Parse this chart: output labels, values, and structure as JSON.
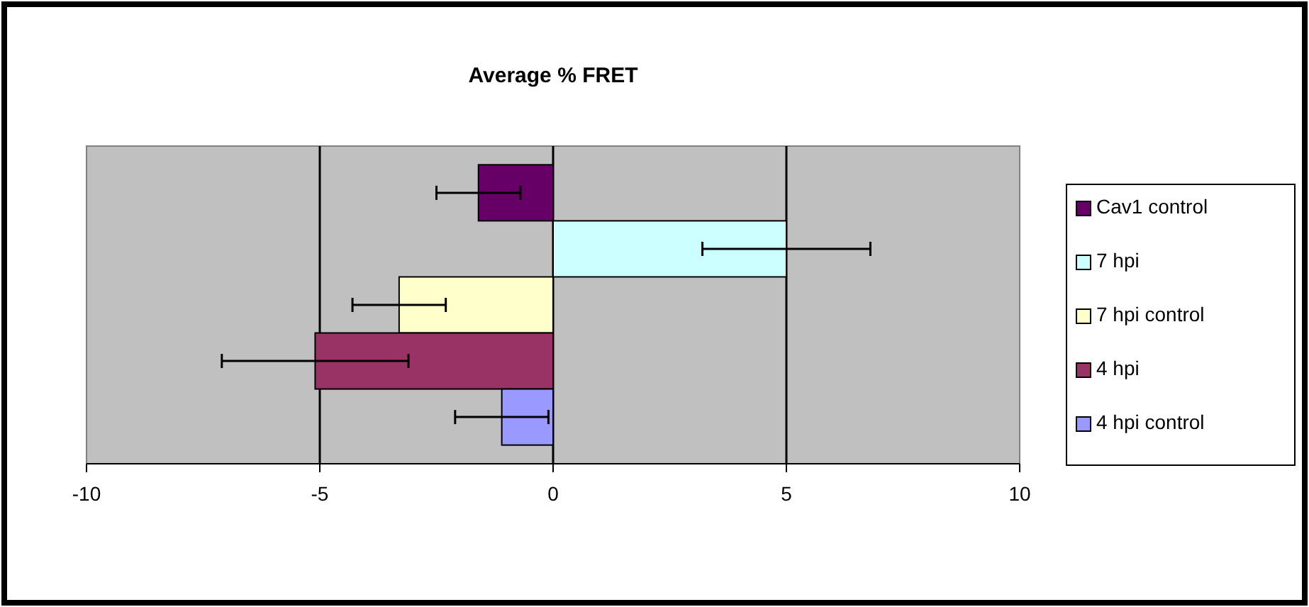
{
  "chart_data": {
    "type": "bar",
    "orientation": "horizontal",
    "title": "Average % FRET",
    "categories": [
      null
    ],
    "series": [
      {
        "name": "Cav1 control",
        "color": "#660066",
        "values": [
          -1.6
        ],
        "errors": [
          0.9
        ]
      },
      {
        "name": "7 hpi",
        "color": "#ccffff",
        "values": [
          5.0
        ],
        "errors": [
          1.8
        ]
      },
      {
        "name": "7 hpi control",
        "color": "#ffffcc",
        "values": [
          -3.3
        ],
        "errors": [
          1.0
        ]
      },
      {
        "name": "4 hpi",
        "color": "#993366",
        "values": [
          -5.1
        ],
        "errors": [
          2.0
        ]
      },
      {
        "name": "4 hpi control",
        "color": "#9999ff",
        "values": [
          -1.1
        ],
        "errors": [
          1.0
        ]
      }
    ],
    "xlim": [
      -10,
      10
    ],
    "xticks": [
      -10,
      -5,
      0,
      5,
      10
    ],
    "grid": "x",
    "legend": "right"
  }
}
